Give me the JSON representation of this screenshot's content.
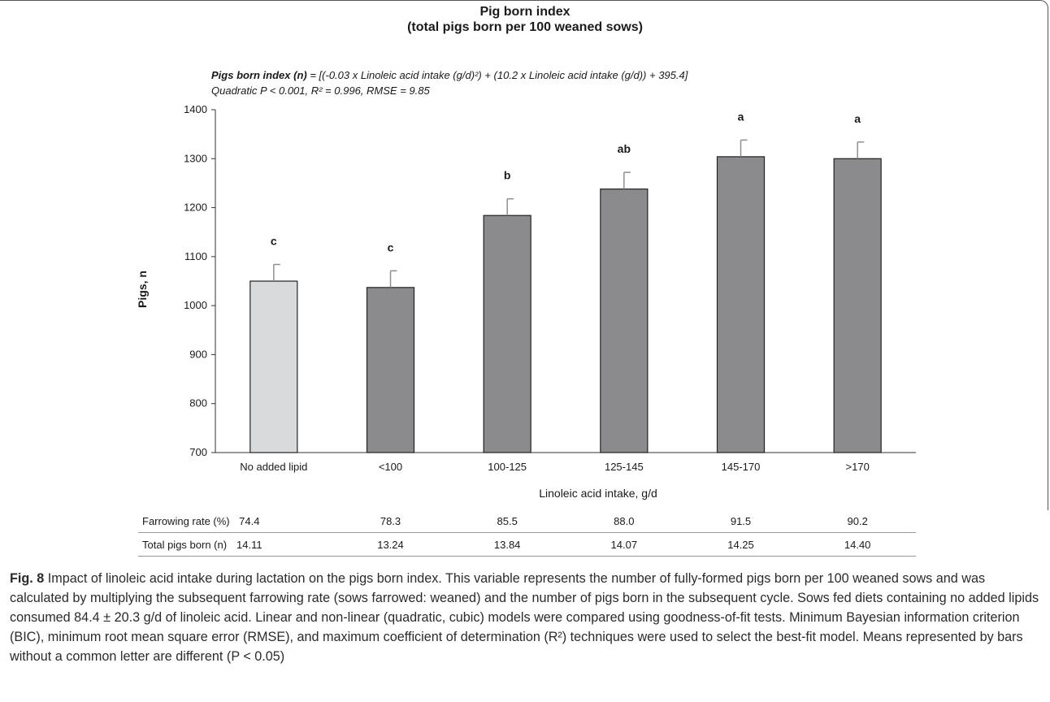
{
  "chart_data": {
    "type": "bar",
    "title": "Pig born index",
    "subtitle": "(total pigs born per 100 weaned sows)",
    "ylabel": "Pigs, n",
    "xlabel": "Linoleic acid intake, g/d",
    "ylim": [
      700,
      1400
    ],
    "yticks": [
      700,
      800,
      900,
      1000,
      1100,
      1200,
      1300,
      1400
    ],
    "categories": [
      "No added lipid",
      "<100",
      "100-125",
      "125-145",
      "145-170",
      ">170"
    ],
    "values": [
      1050,
      1037,
      1184,
      1238,
      1304,
      1300
    ],
    "error": [
      34,
      34,
      34,
      34,
      34,
      34
    ],
    "letters": [
      "c",
      "c",
      "b",
      "ab",
      "a",
      "a"
    ],
    "colors": [
      "#d9dadc",
      "#8b8b8d",
      "#8b8b8d",
      "#8b8b8d",
      "#8b8b8d",
      "#8b8b8d"
    ],
    "equation": {
      "bold_part": "Pigs born index (n)",
      "rest": " = [(-0.03 x Linoleic acid intake (g/d)²) + (10.2 x Linoleic acid intake (g/d)) + 395.4]",
      "line2": "Quadratic P < 0.001, R² = 0.996, RMSE = 9.85"
    }
  },
  "table": {
    "rows": [
      {
        "label": "Farrowing rate (%)",
        "values": [
          "74.4",
          "78.3",
          "85.5",
          "88.0",
          "91.5",
          "90.2"
        ]
      },
      {
        "label": "Total pigs born (n)",
        "values": [
          "14.11",
          "13.24",
          "13.84",
          "14.07",
          "14.25",
          "14.40"
        ]
      }
    ]
  },
  "caption": {
    "fig_number": "Fig. 8",
    "text": " Impact of linoleic acid intake during lactation on the pigs born index. This variable represents the number of fully-formed pigs born per 100 weaned sows and was calculated by multiplying the subsequent farrowing rate (sows farrowed: weaned) and the number of pigs born in the subsequent cycle. Sows fed diets containing no added lipids consumed 84.4 ± 20.3 g/d of linoleic acid. Linear and non-linear (quadratic, cubic) models were compared using goodness-of-fit tests. Minimum Bayesian information criterion (BIC), minimum root mean square error (RMSE), and maximum coefficient of determination (R²) techniques were used to select the best-fit model. Means represented by bars without a common letter are different (P < 0.05)"
  }
}
